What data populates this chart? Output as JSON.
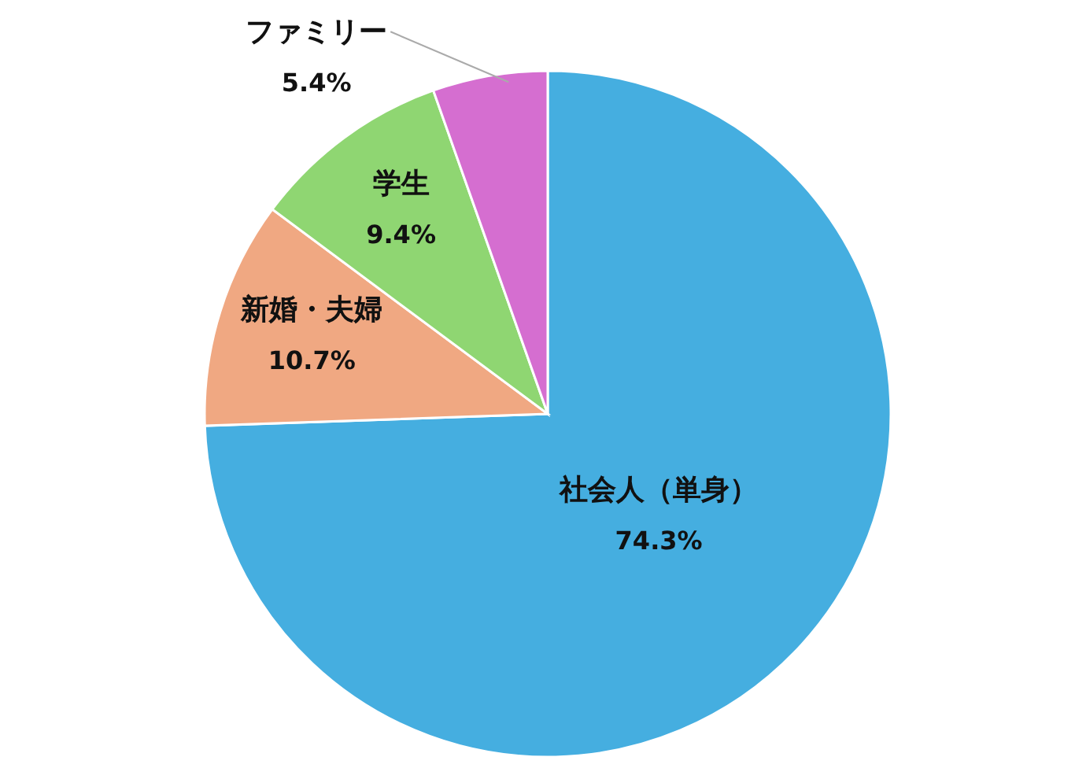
{
  "chart_data": {
    "type": "pie",
    "categories": [
      "社会人（単身）",
      "新婚・夫婦",
      "学生",
      "ファミリー"
    ],
    "values": [
      74.3,
      10.7,
      9.4,
      5.4
    ],
    "colors": [
      "#45aee0",
      "#f0a882",
      "#8fd672",
      "#d56ed0"
    ],
    "value_labels": [
      "74.3%",
      "10.7%",
      "9.4%",
      "5.4%"
    ],
    "legend": false
  }
}
